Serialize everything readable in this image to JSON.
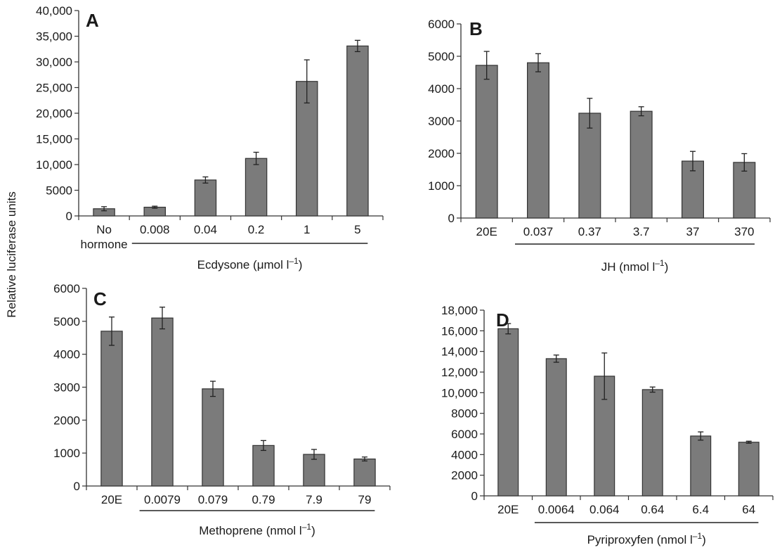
{
  "figure": {
    "ylabel": "Relative luciferase units"
  },
  "colors": {
    "bar_fill": "#7b7b7b",
    "bar_stroke": "#333333",
    "axis": "#333333"
  },
  "chart_data": [
    {
      "type": "bar",
      "panel": "A",
      "categories": [
        "No hormone",
        "0.008",
        "0.04",
        "0.2",
        "1",
        "5"
      ],
      "category_lines": [
        [
          "No",
          "hormone"
        ],
        [
          "0.008"
        ],
        [
          "0.04"
        ],
        [
          "0.2"
        ],
        [
          "1"
        ],
        [
          "5"
        ]
      ],
      "values": [
        1400,
        1700,
        7000,
        11200,
        26200,
        33100
      ],
      "errors": [
        400,
        200,
        600,
        1200,
        4200,
        1100
      ],
      "xlabel": "Ecdysone (μmol l",
      "xlabel_sup": "–1",
      "xlabel_suffix": ")",
      "ylim": [
        0,
        40000
      ],
      "yticks": [
        0,
        5000,
        10000,
        15000,
        20000,
        25000,
        30000,
        35000,
        40000
      ],
      "ytick_labels": [
        "0",
        "5000",
        "10,000",
        "15,000",
        "20,000",
        "25,000",
        "30,000",
        "35,000",
        "40,000"
      ],
      "underline_from": 1,
      "grid": false
    },
    {
      "type": "bar",
      "panel": "B",
      "categories": [
        "20E",
        "0.037",
        "0.37",
        "3.7",
        "37",
        "370"
      ],
      "category_lines": [
        [
          "20E"
        ],
        [
          "0.037"
        ],
        [
          "0.37"
        ],
        [
          "3.7"
        ],
        [
          "37"
        ],
        [
          "370"
        ]
      ],
      "values": [
        4720,
        4800,
        3240,
        3300,
        1760,
        1720
      ],
      "errors": [
        430,
        280,
        460,
        140,
        300,
        270
      ],
      "xlabel": "JH (nmol l",
      "xlabel_sup": "–1",
      "xlabel_suffix": ")",
      "ylim": [
        0,
        6000
      ],
      "yticks": [
        0,
        1000,
        2000,
        3000,
        4000,
        5000,
        6000
      ],
      "ytick_labels": [
        "0",
        "1000",
        "2000",
        "3000",
        "4000",
        "5000",
        "6000"
      ],
      "underline_from": 1,
      "grid": false
    },
    {
      "type": "bar",
      "panel": "C",
      "categories": [
        "20E",
        "0.0079",
        "0.079",
        "0.79",
        "7.9",
        "79"
      ],
      "category_lines": [
        [
          "20E"
        ],
        [
          "0.0079"
        ],
        [
          "0.079"
        ],
        [
          "0.79"
        ],
        [
          "7.9"
        ],
        [
          "79"
        ]
      ],
      "values": [
        4700,
        5100,
        2950,
        1230,
        960,
        820
      ],
      "errors": [
        430,
        330,
        230,
        150,
        150,
        60
      ],
      "xlabel": "Methoprene (nmol l",
      "xlabel_sup": "–1",
      "xlabel_suffix": ")",
      "ylim": [
        0,
        6000
      ],
      "yticks": [
        0,
        1000,
        2000,
        3000,
        4000,
        5000,
        6000
      ],
      "ytick_labels": [
        "0",
        "1000",
        "2000",
        "3000",
        "4000",
        "5000",
        "6000"
      ],
      "underline_from": 1,
      "grid": false
    },
    {
      "type": "bar",
      "panel": "D",
      "categories": [
        "20E",
        "0.0064",
        "0.064",
        "0.64",
        "6.4",
        "64"
      ],
      "category_lines": [
        [
          "20E"
        ],
        [
          "0.0064"
        ],
        [
          "0.064"
        ],
        [
          "0.64"
        ],
        [
          "6.4"
        ],
        [
          "64"
        ]
      ],
      "values": [
        16200,
        13300,
        11600,
        10300,
        5800,
        5200
      ],
      "errors": [
        500,
        350,
        2250,
        250,
        400,
        100
      ],
      "xlabel": "Pyriproxyfen (nmol l",
      "xlabel_sup": "–1",
      "xlabel_suffix": ")",
      "ylim": [
        0,
        18000
      ],
      "yticks": [
        0,
        2000,
        4000,
        6000,
        8000,
        10000,
        12000,
        14000,
        16000,
        18000
      ],
      "ytick_labels": [
        "0",
        "2000",
        "4000",
        "6000",
        "8000",
        "10,000",
        "12,000",
        "14,000",
        "16,000",
        "18,000"
      ],
      "underline_from": 1,
      "grid": false
    }
  ]
}
